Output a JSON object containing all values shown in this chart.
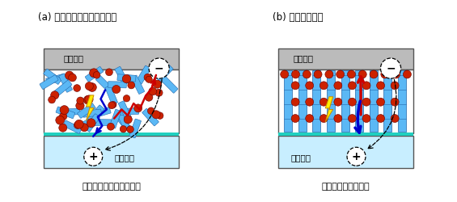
{
  "title_a": "(a) ランダムに混ざった構造",
  "title_b": "(b) 理想的な構造",
  "label_top_electrode": "上部電極",
  "label_transparent_electrode": "透明電極",
  "label_caption_a": "スムーズでない電荷移動",
  "label_caption_b": "スムーズな電荷移動",
  "bg_color": "#ffffff",
  "top_electrode_color": "#bbbbbb",
  "active_layer_color": "#ffffff",
  "teal_color": "#20d0c0",
  "transparent_electrode_color": "#c8eeff",
  "donor_color": "#5bb8f5",
  "donor_edge_color": "#2266aa",
  "acceptor_color": "#cc2200",
  "acceptor_edge_color": "#660000",
  "lightning_color": "#ffee00",
  "lightning_edge": "#cc8800",
  "arrow_red": "#cc0000",
  "arrow_blue": "#0000cc",
  "box_edge_color": "#555555",
  "figure_width": 5.65,
  "figure_height": 2.5,
  "dpi": 100
}
